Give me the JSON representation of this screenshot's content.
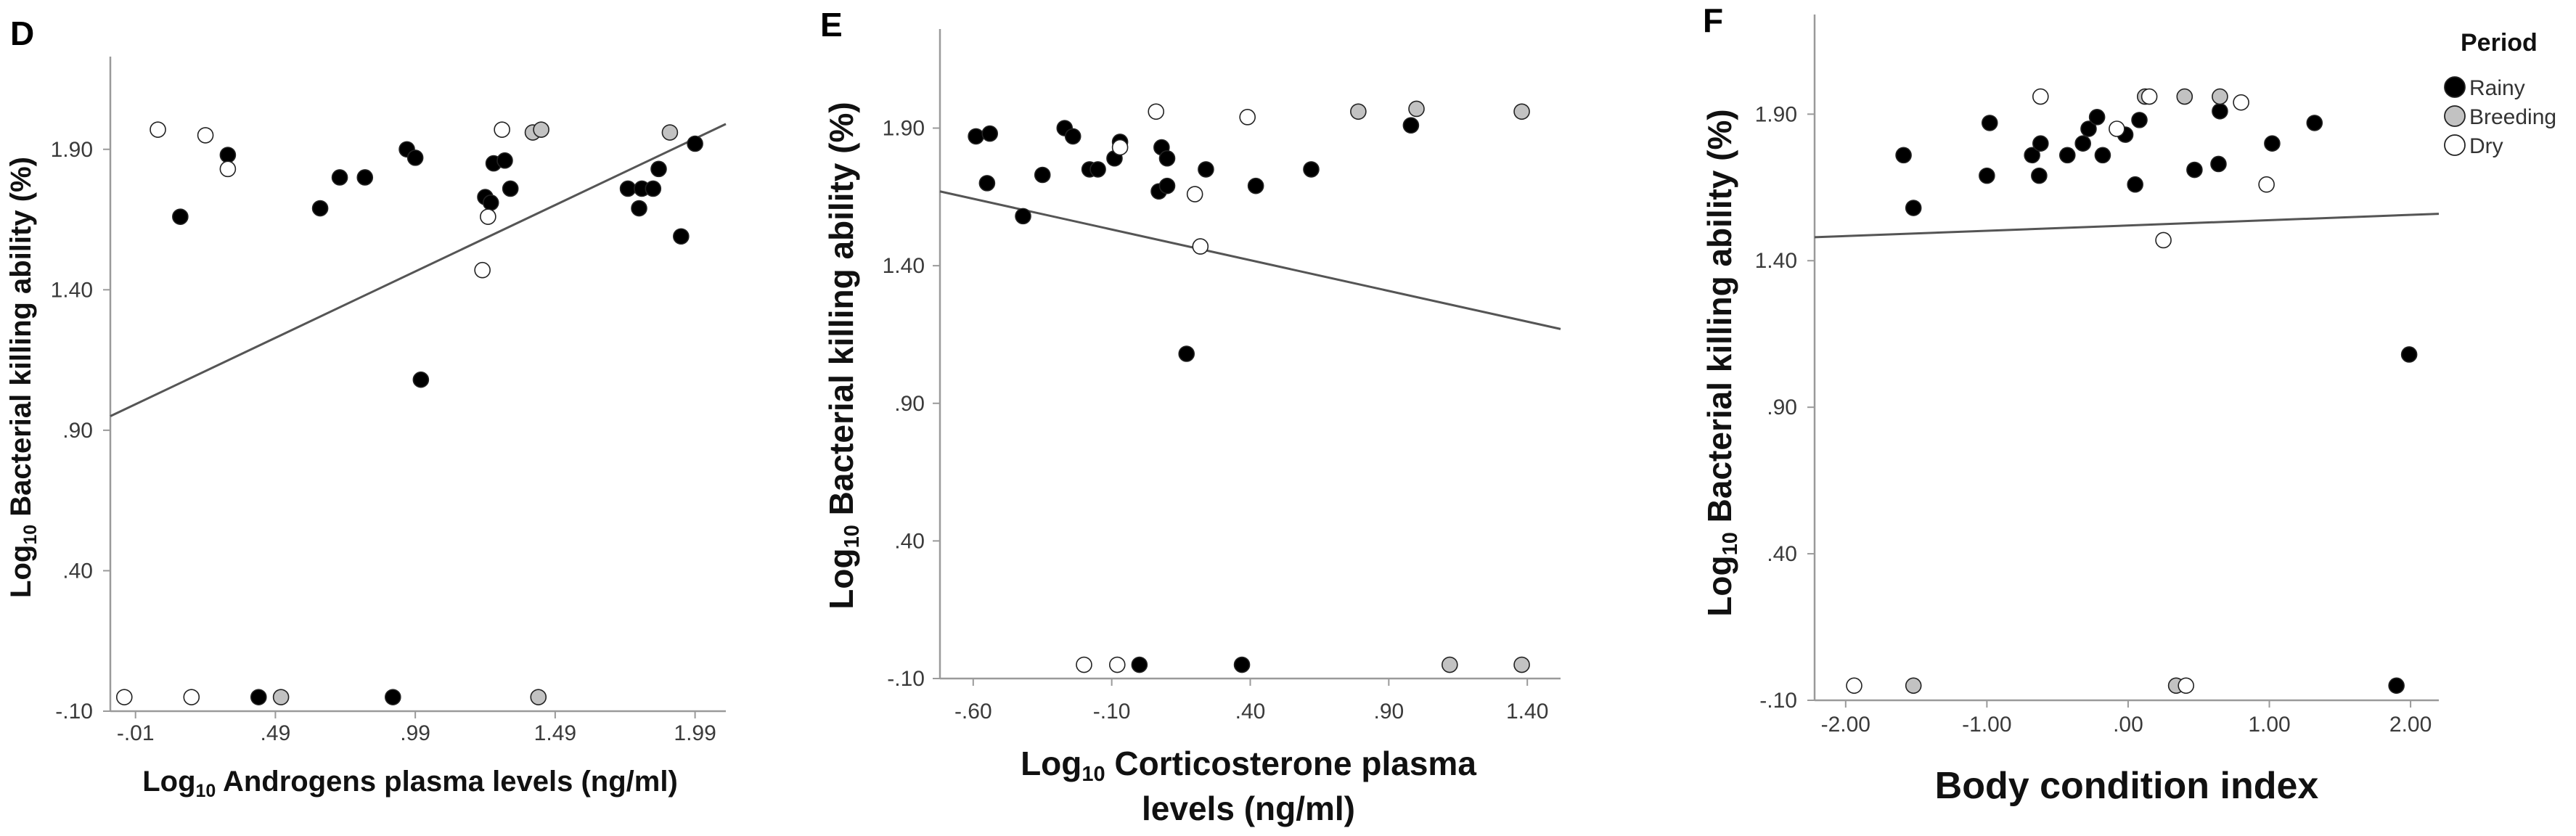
{
  "colors": {
    "Rainy": "#000000",
    "Breeding": "#c2c2c2",
    "Dry": "#ffffff",
    "axis": "#9a9a9a",
    "fit_line": "#555555"
  },
  "legend": {
    "title": "Period",
    "items": [
      "Rainy",
      "Breeding",
      "Dry"
    ],
    "placement": "right of panel F, top"
  },
  "chart_data": [
    {
      "type": "scatter",
      "panel": "D",
      "xlabel": {
        "log": "Log",
        "sub": "10",
        "text": " Androgens plasma levels (ng/ml)"
      },
      "ylabel": {
        "log": "Log",
        "sub": "10",
        "text": " Bacterial killing ability (%)"
      },
      "xlim": [
        -0.1,
        2.1
      ],
      "ylim": [
        -0.1,
        2.23
      ],
      "xticks": [
        -0.01,
        0.49,
        0.99,
        1.49,
        1.99
      ],
      "xtick_labels": [
        "-.01",
        ".49",
        ".99",
        "1.49",
        "1.99"
      ],
      "yticks": [
        -0.1,
        0.4,
        0.9,
        1.4,
        1.9
      ],
      "ytick_labels": [
        "-.10",
        ".40",
        ".90",
        "1.40",
        "1.90"
      ],
      "grid": false,
      "fit_line": {
        "x": [
          -0.1,
          2.1
        ],
        "y": [
          0.95,
          1.99
        ]
      },
      "points": [
        {
          "x": 0.15,
          "y": 1.66,
          "period": "Rainy"
        },
        {
          "x": 0.32,
          "y": 1.88,
          "period": "Rainy"
        },
        {
          "x": 0.65,
          "y": 1.69,
          "period": "Rainy"
        },
        {
          "x": 0.72,
          "y": 1.8,
          "period": "Rainy"
        },
        {
          "x": 0.81,
          "y": 1.8,
          "period": "Rainy"
        },
        {
          "x": 0.96,
          "y": 1.9,
          "period": "Rainy"
        },
        {
          "x": 0.99,
          "y": 1.87,
          "period": "Rainy"
        },
        {
          "x": 1.01,
          "y": 1.08,
          "period": "Rainy"
        },
        {
          "x": 1.24,
          "y": 1.73,
          "period": "Rainy"
        },
        {
          "x": 1.26,
          "y": 1.71,
          "period": "Rainy"
        },
        {
          "x": 1.27,
          "y": 1.85,
          "period": "Rainy"
        },
        {
          "x": 1.31,
          "y": 1.86,
          "period": "Rainy"
        },
        {
          "x": 1.33,
          "y": 1.76,
          "period": "Rainy"
        },
        {
          "x": 1.75,
          "y": 1.76,
          "period": "Rainy"
        },
        {
          "x": 1.79,
          "y": 1.69,
          "period": "Rainy"
        },
        {
          "x": 1.8,
          "y": 1.76,
          "period": "Rainy"
        },
        {
          "x": 1.84,
          "y": 1.76,
          "period": "Rainy"
        },
        {
          "x": 1.86,
          "y": 1.83,
          "period": "Rainy"
        },
        {
          "x": 1.94,
          "y": 1.59,
          "period": "Rainy"
        },
        {
          "x": 1.99,
          "y": 1.92,
          "period": "Rainy"
        },
        {
          "x": 0.43,
          "y": -0.05,
          "period": "Rainy"
        },
        {
          "x": 0.91,
          "y": -0.05,
          "period": "Rainy"
        },
        {
          "x": 1.41,
          "y": 1.96,
          "period": "Breeding"
        },
        {
          "x": 1.44,
          "y": 1.97,
          "period": "Breeding"
        },
        {
          "x": 1.9,
          "y": 1.96,
          "period": "Breeding"
        },
        {
          "x": 0.51,
          "y": -0.05,
          "period": "Breeding"
        },
        {
          "x": 1.43,
          "y": -0.05,
          "period": "Breeding"
        },
        {
          "x": 0.07,
          "y": 1.97,
          "period": "Dry"
        },
        {
          "x": 0.24,
          "y": 1.95,
          "period": "Dry"
        },
        {
          "x": 0.32,
          "y": 1.83,
          "period": "Dry"
        },
        {
          "x": 1.23,
          "y": 1.47,
          "period": "Dry"
        },
        {
          "x": 1.25,
          "y": 1.66,
          "period": "Dry"
        },
        {
          "x": 1.3,
          "y": 1.97,
          "period": "Dry"
        },
        {
          "x": -0.05,
          "y": -0.05,
          "period": "Dry"
        },
        {
          "x": 0.19,
          "y": -0.05,
          "period": "Dry"
        }
      ]
    },
    {
      "type": "scatter",
      "panel": "E",
      "xlabel": {
        "log": "Log",
        "sub": "10",
        "text": " Corticosterone plasma",
        "line2": "levels (ng/ml)"
      },
      "ylabel": {
        "log": "Log",
        "sub": "10",
        "text": " Bacterial killing ability (%)"
      },
      "xlim": [
        -0.72,
        1.52
      ],
      "ylim": [
        -0.1,
        2.26
      ],
      "xticks": [
        -0.6,
        -0.1,
        0.4,
        0.9,
        1.4
      ],
      "xtick_labels": [
        "-.60",
        "-.10",
        ".40",
        ".90",
        "1.40"
      ],
      "yticks": [
        -0.1,
        0.4,
        0.9,
        1.4,
        1.9
      ],
      "ytick_labels": [
        "-.10",
        ".40",
        ".90",
        "1.40",
        "1.90"
      ],
      "grid": false,
      "fit_line": {
        "x": [
          -0.72,
          1.52
        ],
        "y": [
          1.67,
          1.17
        ]
      },
      "points": [
        {
          "x": -0.59,
          "y": 1.87,
          "period": "Rainy"
        },
        {
          "x": -0.55,
          "y": 1.7,
          "period": "Rainy"
        },
        {
          "x": -0.54,
          "y": 1.88,
          "period": "Rainy"
        },
        {
          "x": -0.42,
          "y": 1.58,
          "period": "Rainy"
        },
        {
          "x": -0.35,
          "y": 1.73,
          "period": "Rainy"
        },
        {
          "x": -0.27,
          "y": 1.9,
          "period": "Rainy"
        },
        {
          "x": -0.24,
          "y": 1.87,
          "period": "Rainy"
        },
        {
          "x": -0.18,
          "y": 1.75,
          "period": "Rainy"
        },
        {
          "x": -0.15,
          "y": 1.75,
          "period": "Rainy"
        },
        {
          "x": -0.09,
          "y": 1.79,
          "period": "Rainy"
        },
        {
          "x": -0.07,
          "y": 1.85,
          "period": "Rainy"
        },
        {
          "x": 0.07,
          "y": 1.67,
          "period": "Rainy"
        },
        {
          "x": 0.08,
          "y": 1.83,
          "period": "Rainy"
        },
        {
          "x": 0.1,
          "y": 1.79,
          "period": "Rainy"
        },
        {
          "x": 0.1,
          "y": 1.69,
          "period": "Rainy"
        },
        {
          "x": 0.17,
          "y": 1.08,
          "period": "Rainy"
        },
        {
          "x": 0.24,
          "y": 1.75,
          "period": "Rainy"
        },
        {
          "x": 0.42,
          "y": 1.69,
          "period": "Rainy"
        },
        {
          "x": 0.62,
          "y": 1.75,
          "period": "Rainy"
        },
        {
          "x": 0.98,
          "y": 1.91,
          "period": "Rainy"
        },
        {
          "x": 0.0,
          "y": -0.05,
          "period": "Rainy"
        },
        {
          "x": 0.37,
          "y": -0.05,
          "period": "Rainy"
        },
        {
          "x": 0.79,
          "y": 1.96,
          "period": "Breeding"
        },
        {
          "x": 1.0,
          "y": 1.97,
          "period": "Breeding"
        },
        {
          "x": 1.38,
          "y": 1.96,
          "period": "Breeding"
        },
        {
          "x": 1.12,
          "y": -0.05,
          "period": "Breeding"
        },
        {
          "x": 1.38,
          "y": -0.05,
          "period": "Breeding"
        },
        {
          "x": -0.07,
          "y": 1.83,
          "period": "Dry"
        },
        {
          "x": 0.06,
          "y": 1.96,
          "period": "Dry"
        },
        {
          "x": 0.2,
          "y": 1.66,
          "period": "Dry"
        },
        {
          "x": 0.22,
          "y": 1.47,
          "period": "Dry"
        },
        {
          "x": 0.39,
          "y": 1.94,
          "period": "Dry"
        },
        {
          "x": -0.2,
          "y": -0.05,
          "period": "Dry"
        },
        {
          "x": -0.08,
          "y": -0.05,
          "period": "Dry"
        }
      ]
    },
    {
      "type": "scatter",
      "panel": "F",
      "xlabel": {
        "text": "Body condition index"
      },
      "ylabel": {
        "log": "Log",
        "sub": "10",
        "text": " Bacterial killing ability  (%)"
      },
      "xlim": [
        -2.22,
        2.2
      ],
      "ylim": [
        -0.1,
        2.24
      ],
      "xticks": [
        -2.0,
        -1.0,
        0.0,
        1.0,
        2.0
      ],
      "xtick_labels": [
        "-2.00",
        "-1.00",
        ".00",
        "1.00",
        "2.00"
      ],
      "yticks": [
        -0.1,
        0.4,
        0.9,
        1.4,
        1.9
      ],
      "ytick_labels": [
        "-.10",
        ".40",
        ".90",
        "1.40",
        "1.90"
      ],
      "grid": false,
      "fit_line": {
        "x": [
          -2.22,
          2.2
        ],
        "y": [
          1.48,
          1.56
        ]
      },
      "points": [
        {
          "x": -1.59,
          "y": 1.76,
          "period": "Rainy"
        },
        {
          "x": -1.52,
          "y": 1.58,
          "period": "Rainy"
        },
        {
          "x": -1.0,
          "y": 1.69,
          "period": "Rainy"
        },
        {
          "x": -0.98,
          "y": 1.87,
          "period": "Rainy"
        },
        {
          "x": -0.68,
          "y": 1.76,
          "period": "Rainy"
        },
        {
          "x": -0.62,
          "y": 1.8,
          "period": "Rainy"
        },
        {
          "x": -0.63,
          "y": 1.69,
          "period": "Rainy"
        },
        {
          "x": -0.43,
          "y": 1.76,
          "period": "Rainy"
        },
        {
          "x": -0.32,
          "y": 1.8,
          "period": "Rainy"
        },
        {
          "x": -0.28,
          "y": 1.85,
          "period": "Rainy"
        },
        {
          "x": -0.22,
          "y": 1.89,
          "period": "Rainy"
        },
        {
          "x": -0.18,
          "y": 1.76,
          "period": "Rainy"
        },
        {
          "x": -0.02,
          "y": 1.83,
          "period": "Rainy"
        },
        {
          "x": 0.05,
          "y": 1.66,
          "period": "Rainy"
        },
        {
          "x": 0.08,
          "y": 1.88,
          "period": "Rainy"
        },
        {
          "x": 0.47,
          "y": 1.71,
          "period": "Rainy"
        },
        {
          "x": 0.64,
          "y": 1.73,
          "period": "Rainy"
        },
        {
          "x": 0.65,
          "y": 1.91,
          "period": "Rainy"
        },
        {
          "x": 1.02,
          "y": 1.8,
          "period": "Rainy"
        },
        {
          "x": 1.32,
          "y": 1.87,
          "period": "Rainy"
        },
        {
          "x": 1.99,
          "y": 1.08,
          "period": "Rainy"
        },
        {
          "x": 1.9,
          "y": -0.05,
          "period": "Rainy"
        },
        {
          "x": 0.4,
          "y": 1.96,
          "period": "Breeding"
        },
        {
          "x": 0.65,
          "y": 1.96,
          "period": "Breeding"
        },
        {
          "x": 0.12,
          "y": 1.96,
          "period": "Breeding"
        },
        {
          "x": -1.52,
          "y": -0.05,
          "period": "Breeding"
        },
        {
          "x": 0.34,
          "y": -0.05,
          "period": "Breeding"
        },
        {
          "x": -0.62,
          "y": 1.96,
          "period": "Dry"
        },
        {
          "x": -0.08,
          "y": 1.85,
          "period": "Dry"
        },
        {
          "x": 0.15,
          "y": 1.96,
          "period": "Dry"
        },
        {
          "x": 0.8,
          "y": 1.94,
          "period": "Dry"
        },
        {
          "x": 0.98,
          "y": 1.66,
          "period": "Dry"
        },
        {
          "x": 0.25,
          "y": 1.47,
          "period": "Dry"
        },
        {
          "x": -1.94,
          "y": -0.05,
          "period": "Dry"
        },
        {
          "x": 0.41,
          "y": -0.05,
          "period": "Dry"
        }
      ]
    }
  ]
}
